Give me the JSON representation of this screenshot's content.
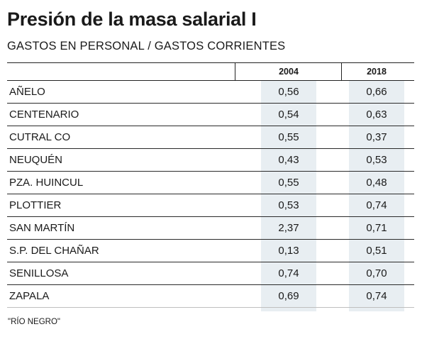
{
  "header": {
    "title": "Presión de la masa salarial I",
    "subtitle": "GASTOS EN PERSONAL / GASTOS CORRIENTES"
  },
  "chart_data": {
    "type": "table",
    "title": "Presión de la masa salarial I",
    "subtitle": "GASTOS EN PERSONAL / GASTOS CORRIENTES",
    "columns": [
      "2004",
      "2018"
    ],
    "rows": [
      {
        "label": "AÑELO",
        "v2004": "0,56",
        "v2018": "0,66"
      },
      {
        "label": "CENTENARIO",
        "v2004": "0,54",
        "v2018": "0,63"
      },
      {
        "label": "CUTRAL CO",
        "v2004": "0,55",
        "v2018": "0,37"
      },
      {
        "label": "NEUQUÉN",
        "v2004": "0,43",
        "v2018": "0,53"
      },
      {
        "label": "PZA. HUINCUL",
        "v2004": "0,55",
        "v2018": "0,48"
      },
      {
        "label": "PLOTTIER",
        "v2004": "0,53",
        "v2018": "0,74"
      },
      {
        "label": "SAN MARTÍN",
        "v2004": "2,37",
        "v2018": "0,71"
      },
      {
        "label": "S.P. DEL CHAÑAR",
        "v2004": "0,13",
        "v2018": "0,51"
      },
      {
        "label": "SENILLOSA",
        "v2004": "0,74",
        "v2018": "0,70"
      },
      {
        "label": "ZAPALA",
        "v2004": "0,69",
        "v2018": "0,74"
      }
    ],
    "footnote": "\"RÍO NEGRO\""
  },
  "colors": {
    "column_shade": "#e8eef2",
    "rule": "#222222",
    "text": "#1a1a1a"
  }
}
